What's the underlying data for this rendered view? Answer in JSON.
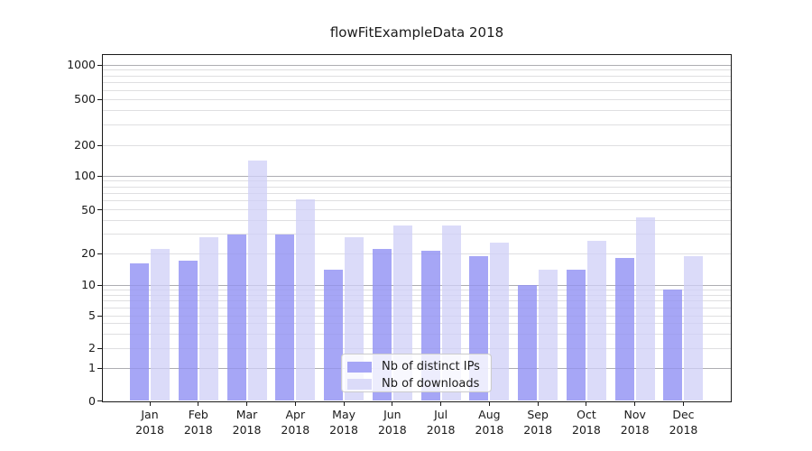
{
  "chart_data": {
    "type": "bar",
    "title": "flowFitExampleData 2018",
    "x_labels": [
      {
        "month": "Jan",
        "year": "2018"
      },
      {
        "month": "Feb",
        "year": "2018"
      },
      {
        "month": "Mar",
        "year": "2018"
      },
      {
        "month": "Apr",
        "year": "2018"
      },
      {
        "month": "May",
        "year": "2018"
      },
      {
        "month": "Jun",
        "year": "2018"
      },
      {
        "month": "Jul",
        "year": "2018"
      },
      {
        "month": "Aug",
        "year": "2018"
      },
      {
        "month": "Sep",
        "year": "2018"
      },
      {
        "month": "Oct",
        "year": "2018"
      },
      {
        "month": "Nov",
        "year": "2018"
      },
      {
        "month": "Dec",
        "year": "2018"
      }
    ],
    "series": [
      {
        "name": "Nb of distinct IPs",
        "color": "#a6a6f6",
        "values": [
          16,
          17,
          30,
          30,
          14,
          22,
          21,
          19,
          10,
          14,
          18,
          9
        ]
      },
      {
        "name": "Nb of downloads",
        "color": "#dbdbf9",
        "values": [
          22,
          28,
          140,
          62,
          28,
          36,
          36,
          25,
          14,
          26,
          43,
          19
        ]
      }
    ],
    "y_ticks": [
      0,
      1,
      2,
      5,
      10,
      20,
      50,
      100,
      200,
      500,
      1000
    ],
    "y_scale": "log-like (compressed near zero)",
    "ylim": [
      0,
      1250
    ],
    "xlabel": "",
    "ylabel": "",
    "grid": {
      "horizontal": true,
      "vertical": false,
      "major_lines_at": [
        1,
        10,
        100,
        1000
      ],
      "minor_lines": "2-9 per decade"
    },
    "legend": {
      "position": "lower center",
      "entries": [
        "Nb of distinct IPs",
        "Nb of downloads"
      ]
    }
  },
  "colors": {
    "axis": "#1a1a1a",
    "grid_major": "#bdbdbd",
    "grid_minor": "#e7e7e7",
    "series_ips": "#a6a6f6",
    "series_downloads": "#dbdbf9",
    "background": "#ffffff"
  }
}
